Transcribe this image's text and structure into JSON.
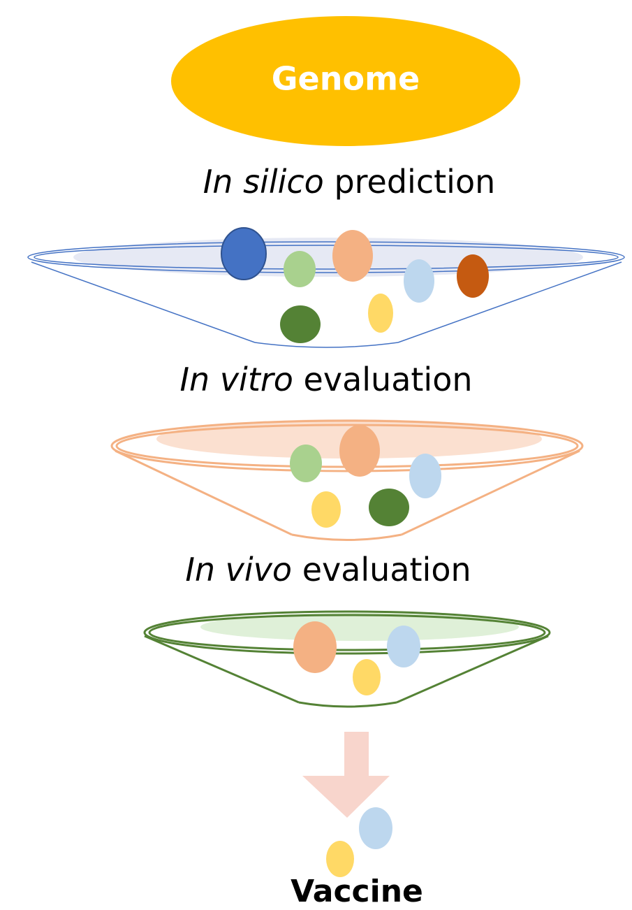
{
  "nodes": [
    {
      "label": "Genome"
    }
  ],
  "stages": [
    {
      "italic": "In silico",
      "text": "prediction"
    },
    {
      "italic": "In vitro",
      "text": "evaluation"
    },
    {
      "italic": "In vivo",
      "text": "evaluation"
    }
  ],
  "output": {
    "label": "Vaccine"
  }
}
